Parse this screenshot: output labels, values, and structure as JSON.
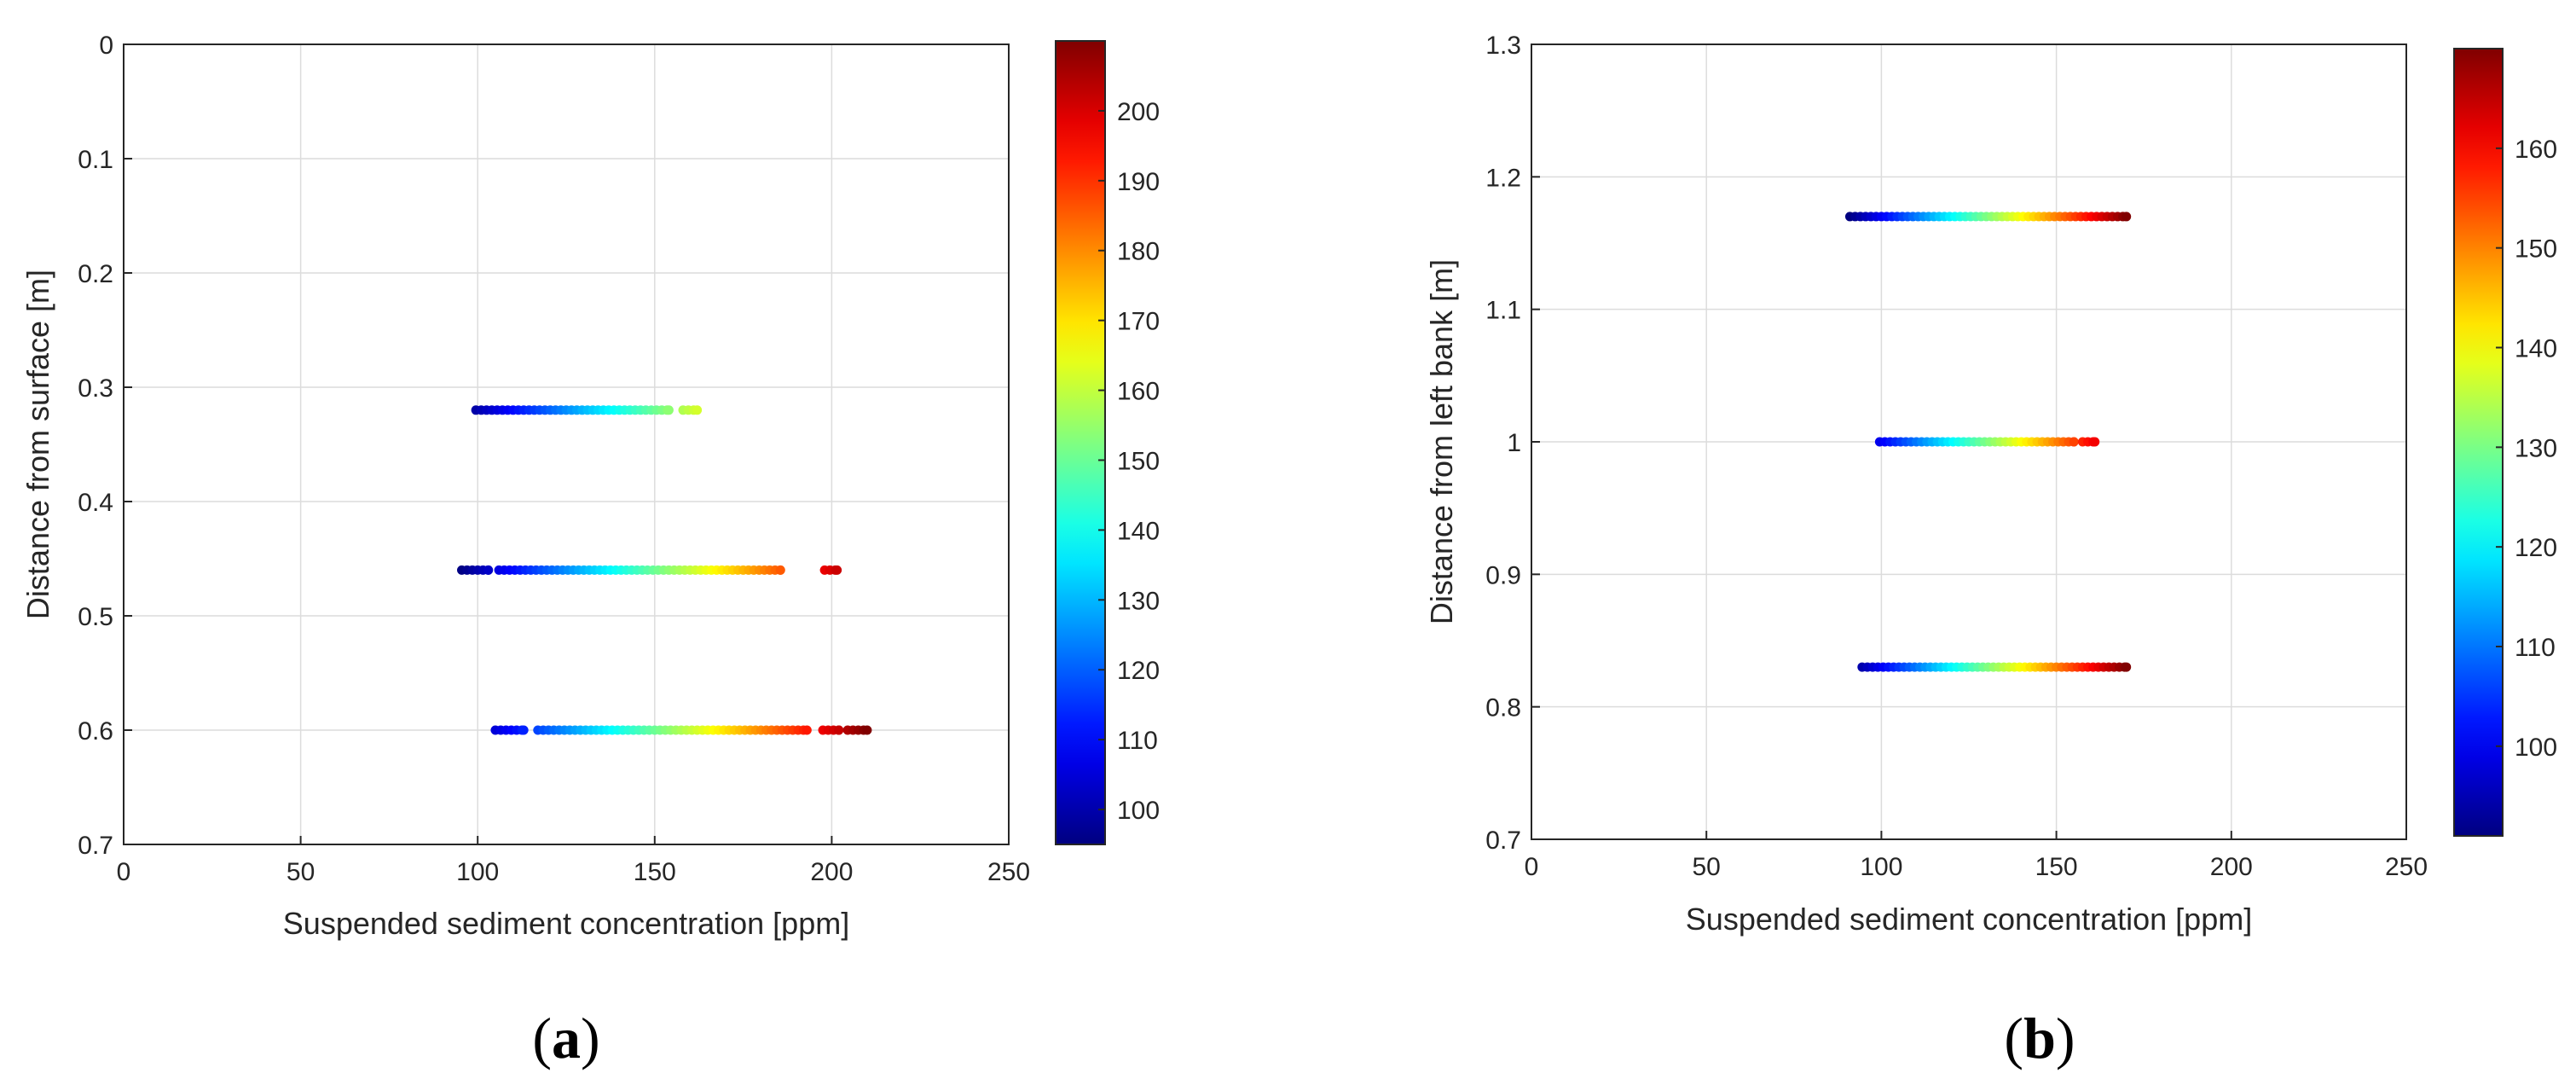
{
  "chart_data": [
    {
      "type": "scatter",
      "panel_label": "a",
      "xlabel": "Suspended sediment concentration [ppm]",
      "ylabel": "Distance from surface [m]",
      "xlim": [
        0,
        250
      ],
      "ylim": [
        0,
        0.7
      ],
      "y_reversed": true,
      "grid": true,
      "xticks": [
        0,
        50,
        100,
        150,
        200,
        250
      ],
      "xtick_labels": [
        "0",
        "50",
        "100",
        "150",
        "200",
        "250"
      ],
      "yticks": [
        0,
        0.1,
        0.2,
        0.3,
        0.4,
        0.5,
        0.6,
        0.7
      ],
      "ytick_labels": [
        "0",
        "0.1",
        "0.2",
        "0.3",
        "0.4",
        "0.5",
        "0.6",
        "0.7"
      ],
      "colorbar": {
        "colormap": "jet",
        "range": [
          95,
          210
        ],
        "ticks": [
          100,
          110,
          120,
          130,
          140,
          150,
          160,
          170,
          180,
          190,
          200
        ],
        "tick_labels": [
          "100",
          "110",
          "120",
          "130",
          "140",
          "150",
          "160",
          "170",
          "180",
          "190",
          "200"
        ]
      },
      "series": [
        {
          "y": 0.32,
          "x_segments": [
            [
              99.5,
              154
            ],
            [
              158,
              162
            ]
          ]
        },
        {
          "y": 0.46,
          "x_segments": [
            [
              95.5,
              103
            ],
            [
              106,
              185.5
            ],
            [
              198,
              201.5
            ]
          ]
        },
        {
          "y": 0.6,
          "x_segments": [
            [
              105,
              113
            ],
            [
              117,
              193
            ],
            [
              197.5,
              202
            ],
            [
              204.5,
              210
            ]
          ]
        }
      ]
    },
    {
      "type": "scatter",
      "panel_label": "b",
      "xlabel": "Suspended sediment concentration [ppm]",
      "ylabel": "Distance from left bank [m]",
      "xlim": [
        0,
        250
      ],
      "ylim": [
        0.7,
        1.3
      ],
      "y_reversed": false,
      "grid": true,
      "xticks": [
        0,
        50,
        100,
        150,
        200,
        250
      ],
      "xtick_labels": [
        "0",
        "50",
        "100",
        "150",
        "200",
        "250"
      ],
      "yticks": [
        0.7,
        0.8,
        0.9,
        1.0,
        1.1,
        1.2,
        1.3
      ],
      "ytick_labels": [
        "0.7",
        "0.8",
        "0.9",
        "1",
        "1.1",
        "1.2",
        "1.3"
      ],
      "colorbar": {
        "colormap": "jet",
        "range": [
          91,
          170
        ],
        "ticks": [
          100,
          110,
          120,
          130,
          140,
          150,
          160
        ],
        "tick_labels": [
          "100",
          "110",
          "120",
          "130",
          "140",
          "150",
          "160"
        ]
      },
      "series": [
        {
          "y": 1.17,
          "x_segments": [
            [
              91,
              170
            ]
          ]
        },
        {
          "y": 1.0,
          "x_segments": [
            [
              99.5,
              155
            ],
            [
              157.5,
              161
            ]
          ]
        },
        {
          "y": 0.83,
          "x_segments": [
            [
              94.5,
              170
            ]
          ]
        }
      ]
    }
  ],
  "captions": {
    "a": {
      "open": "(",
      "letter": "a",
      "close": ")"
    },
    "b": {
      "open": "(",
      "letter": "b",
      "close": ")"
    }
  }
}
